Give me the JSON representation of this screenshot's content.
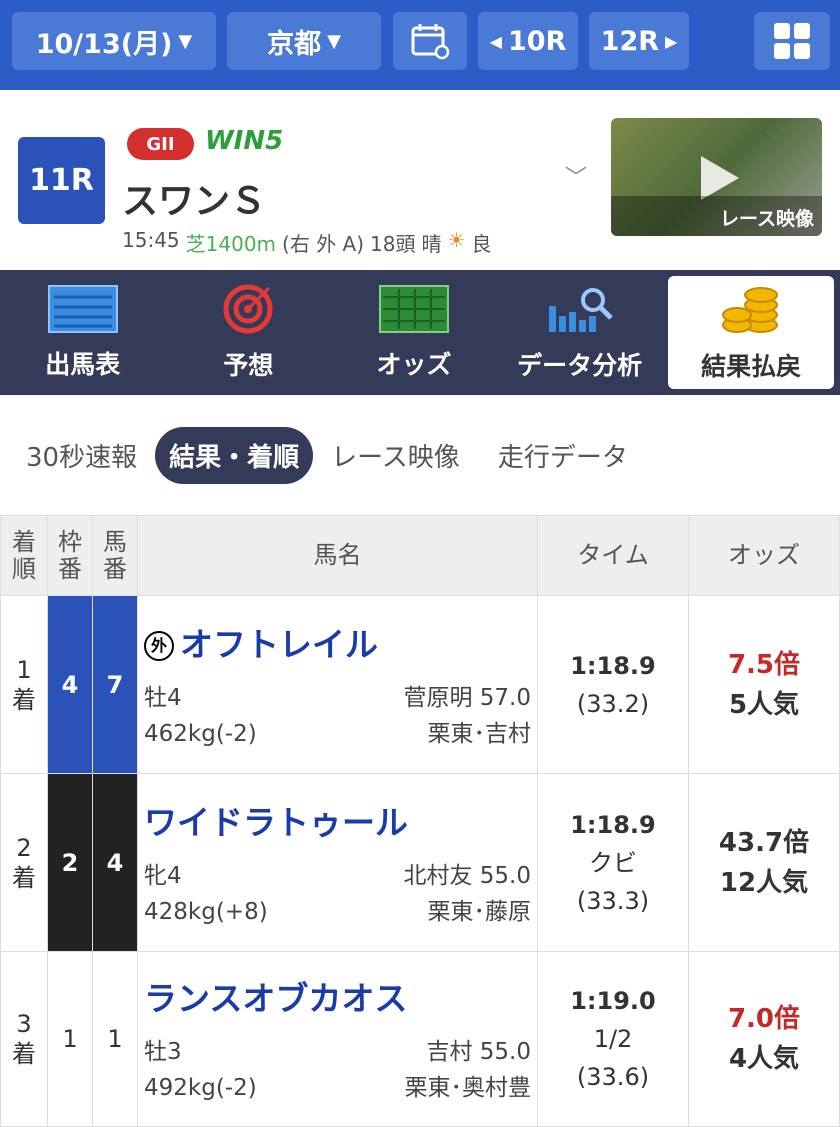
{
  "topbar": {
    "date": "10/13(月)",
    "venue": "京都",
    "prev_race": "10R",
    "next_race": "12R",
    "calendar_icon": "calendar-icon",
    "grid_icon": "grid-icon"
  },
  "race": {
    "number": "11R",
    "grade": "GII",
    "win5": "WIN5",
    "name": "スワンＳ",
    "time": "15:45",
    "course": "芝1400m",
    "course_detail": "(右 外 A)",
    "runners": "18頭",
    "weather": "晴",
    "going": "良",
    "video_label": "レース映像"
  },
  "nav": [
    {
      "label": "出馬表"
    },
    {
      "label": "予想"
    },
    {
      "label": "オッズ"
    },
    {
      "label": "データ分析"
    },
    {
      "label": "結果払戻",
      "active": true
    }
  ],
  "subtabs": [
    {
      "label": "30秒速報"
    },
    {
      "label": "結果・着順",
      "active": true
    },
    {
      "label": "レース映像"
    },
    {
      "label": "走行データ"
    }
  ],
  "table": {
    "headers": {
      "rank": "着順",
      "frame": "枠番",
      "num": "馬番",
      "name": "馬名",
      "time": "タイム",
      "odds": "オッズ"
    },
    "rows": [
      {
        "rank": "1",
        "rank_suffix": "着",
        "frame": "4",
        "frame_color": "#2a52b8",
        "num": "7",
        "mark": "外",
        "name": "オフトレイル",
        "sex_age": "牡4",
        "jockey": "菅原明 57.0",
        "weight": "462kg(-2)",
        "trainer": "栗東･吉村",
        "time": "1:18.9",
        "margin": "",
        "last3f": "(33.2)",
        "odds": "7.5倍",
        "odds_color": "#c62828",
        "pop": "5人気"
      },
      {
        "rank": "2",
        "rank_suffix": "着",
        "frame": "2",
        "frame_color": "#222222",
        "num": "4",
        "mark": "",
        "name": "ワイドラトゥール",
        "sex_age": "牝4",
        "jockey": "北村友 55.0",
        "weight": "428kg(+8)",
        "trainer": "栗東･藤原",
        "time": "1:18.9",
        "margin": "クビ",
        "last3f": "(33.3)",
        "odds": "43.7倍",
        "odds_color": "#333333",
        "pop": "12人気"
      },
      {
        "rank": "3",
        "rank_suffix": "着",
        "frame": "1",
        "frame_color": "#ffffff",
        "num": "1",
        "mark": "",
        "name": "ランスオブカオス",
        "sex_age": "牡3",
        "jockey": "吉村 55.0",
        "weight": "492kg(-2)",
        "trainer": "栗東･奥村豊",
        "time": "1:19.0",
        "margin": "1/2",
        "last3f": "(33.6)",
        "odds": "7.0倍",
        "odds_color": "#c62828",
        "pop": "4人気"
      }
    ]
  }
}
